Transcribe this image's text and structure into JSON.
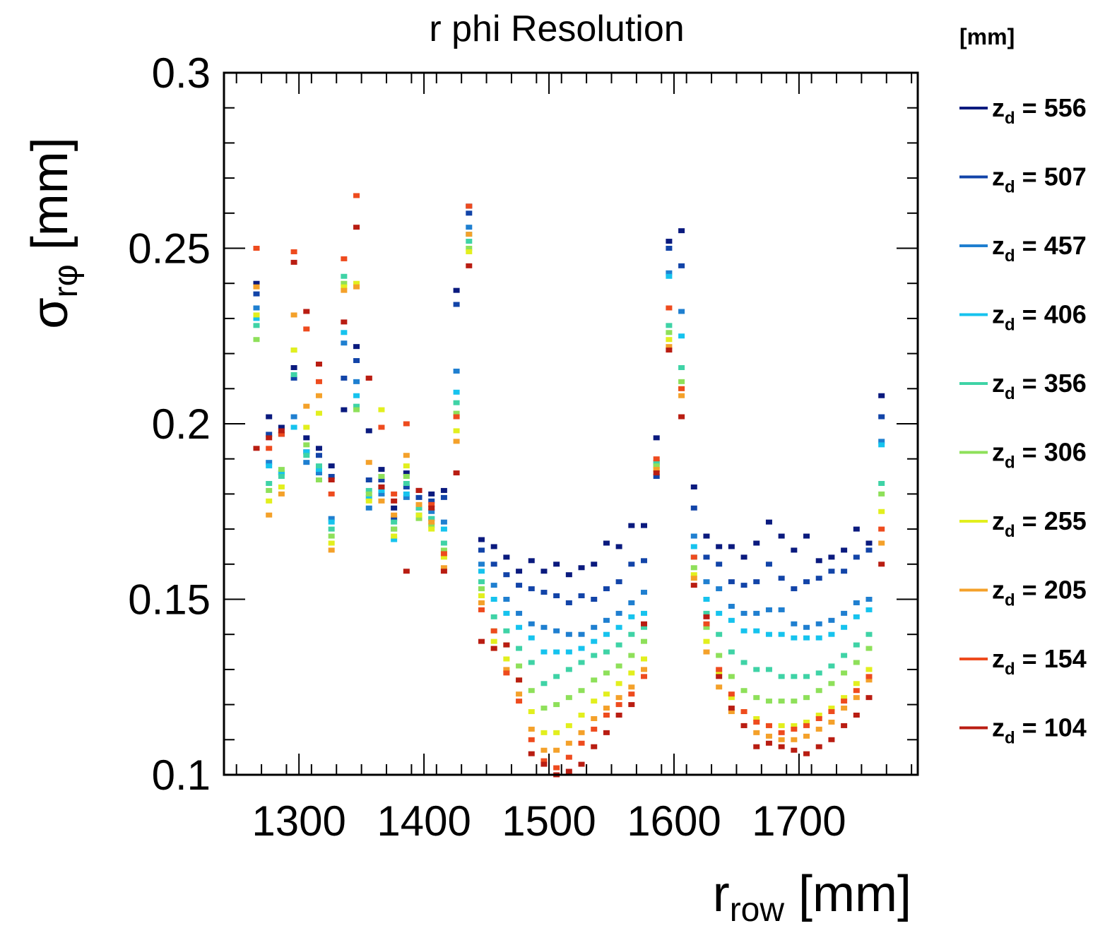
{
  "chart_data": {
    "type": "scatter",
    "title": "r phi Resolution",
    "xlabel": {
      "main": "r",
      "sub": "row",
      "unit": " [mm]"
    },
    "ylabel": {
      "main": "σ",
      "sub": "rφ",
      "unit": " [mm]"
    },
    "xlim": [
      1240,
      1795
    ],
    "ylim": [
      0.1,
      0.3
    ],
    "xticks": [
      1300,
      1400,
      1500,
      1600,
      1700
    ],
    "xtick_labels": [
      "1300",
      "1400",
      "1500",
      "1600",
      "1700"
    ],
    "yticks": [
      0.1,
      0.15,
      0.2,
      0.25,
      0.3
    ],
    "ytick_labels": [
      "0.1",
      "0.15",
      "0.2",
      "0.25",
      "0.3"
    ],
    "grid": false,
    "legend_title": "[mm]",
    "legend_position": "right",
    "series": [
      {
        "name": "z_d = 556",
        "label_main": "z",
        "label_sub": "d",
        "label_rest": " = 556",
        "color": "#0a1a7e",
        "x": [
          1266,
          1276,
          1286,
          1296,
          1306,
          1316,
          1326,
          1336,
          1346,
          1356,
          1366,
          1376,
          1386,
          1396,
          1406,
          1416,
          1426,
          1436,
          1446,
          1456,
          1466,
          1476,
          1486,
          1496,
          1506,
          1516,
          1526,
          1536,
          1546,
          1556,
          1566,
          1576,
          1586,
          1596,
          1606,
          1616,
          1626,
          1636,
          1646,
          1656,
          1666,
          1676,
          1686,
          1696,
          1706,
          1716,
          1726,
          1736,
          1746,
          1756,
          1766
        ],
        "y": [
          0.24,
          0.202,
          0.199,
          0.216,
          0.196,
          0.193,
          0.188,
          0.204,
          0.222,
          0.198,
          0.187,
          0.176,
          0.186,
          0.181,
          0.18,
          0.181,
          0.238,
          0.262,
          0.167,
          0.165,
          0.162,
          0.158,
          0.161,
          0.158,
          0.16,
          0.157,
          0.159,
          0.16,
          0.166,
          0.165,
          0.171,
          0.171,
          0.196,
          0.252,
          0.255,
          0.182,
          0.168,
          0.165,
          0.165,
          0.162,
          0.166,
          0.172,
          0.168,
          0.164,
          0.168,
          0.161,
          0.162,
          0.164,
          0.17,
          0.166,
          0.208
        ]
      },
      {
        "name": "z_d = 507",
        "label_main": "z",
        "label_sub": "d",
        "label_rest": " = 507",
        "color": "#1244a8",
        "x": [
          1266,
          1276,
          1286,
          1296,
          1306,
          1316,
          1326,
          1336,
          1346,
          1356,
          1366,
          1376,
          1386,
          1396,
          1406,
          1416,
          1426,
          1436,
          1446,
          1456,
          1466,
          1476,
          1486,
          1496,
          1506,
          1516,
          1526,
          1536,
          1546,
          1556,
          1566,
          1576,
          1586,
          1596,
          1606,
          1616,
          1626,
          1636,
          1646,
          1656,
          1666,
          1676,
          1686,
          1696,
          1706,
          1716,
          1726,
          1736,
          1746,
          1756,
          1766
        ],
        "y": [
          0.237,
          0.197,
          0.197,
          0.213,
          0.192,
          0.191,
          0.185,
          0.213,
          0.218,
          0.184,
          0.184,
          0.173,
          0.182,
          0.179,
          0.178,
          0.179,
          0.234,
          0.26,
          0.164,
          0.16,
          0.157,
          0.154,
          0.153,
          0.152,
          0.151,
          0.149,
          0.151,
          0.15,
          0.153,
          0.155,
          0.16,
          0.161,
          0.185,
          0.25,
          0.245,
          0.176,
          0.162,
          0.16,
          0.155,
          0.154,
          0.155,
          0.16,
          0.156,
          0.153,
          0.155,
          0.156,
          0.158,
          0.158,
          0.162,
          0.164,
          0.202
        ]
      },
      {
        "name": "z_d = 457",
        "label_main": "z",
        "label_sub": "d",
        "label_rest": " = 457",
        "color": "#1f7fd0",
        "x": [
          1266,
          1276,
          1286,
          1296,
          1306,
          1316,
          1326,
          1336,
          1346,
          1356,
          1366,
          1376,
          1386,
          1396,
          1406,
          1416,
          1426,
          1436,
          1446,
          1456,
          1466,
          1476,
          1486,
          1496,
          1506,
          1516,
          1526,
          1536,
          1546,
          1556,
          1566,
          1576,
          1586,
          1596,
          1606,
          1616,
          1626,
          1636,
          1646,
          1656,
          1666,
          1676,
          1686,
          1696,
          1706,
          1716,
          1726,
          1736,
          1746,
          1756,
          1766
        ],
        "y": [
          0.233,
          0.189,
          0.186,
          0.202,
          0.189,
          0.186,
          0.173,
          0.223,
          0.212,
          0.176,
          0.18,
          0.17,
          0.179,
          0.176,
          0.175,
          0.172,
          0.215,
          0.256,
          0.16,
          0.154,
          0.15,
          0.146,
          0.143,
          0.142,
          0.141,
          0.14,
          0.14,
          0.142,
          0.144,
          0.146,
          0.149,
          0.152,
          0.189,
          0.243,
          0.232,
          0.168,
          0.155,
          0.153,
          0.148,
          0.146,
          0.146,
          0.147,
          0.147,
          0.143,
          0.142,
          0.143,
          0.144,
          0.146,
          0.149,
          0.15,
          0.195
        ]
      },
      {
        "name": "z_d = 406",
        "label_main": "z",
        "label_sub": "d",
        "label_rest": " = 406",
        "color": "#16c3ee",
        "x": [
          1266,
          1276,
          1286,
          1296,
          1306,
          1316,
          1326,
          1336,
          1346,
          1356,
          1366,
          1376,
          1386,
          1396,
          1406,
          1416,
          1426,
          1436,
          1446,
          1456,
          1466,
          1476,
          1486,
          1496,
          1506,
          1516,
          1526,
          1536,
          1546,
          1556,
          1566,
          1576,
          1586,
          1596,
          1606,
          1616,
          1626,
          1636,
          1646,
          1656,
          1666,
          1676,
          1686,
          1696,
          1706,
          1716,
          1726,
          1736,
          1746,
          1756,
          1766
        ],
        "y": [
          0.23,
          0.188,
          0.186,
          0.199,
          0.192,
          0.187,
          0.172,
          0.226,
          0.208,
          0.179,
          0.181,
          0.167,
          0.18,
          0.174,
          0.173,
          0.17,
          0.209,
          0.254,
          0.158,
          0.15,
          0.146,
          0.142,
          0.139,
          0.135,
          0.135,
          0.135,
          0.136,
          0.138,
          0.14,
          0.142,
          0.145,
          0.146,
          0.188,
          0.242,
          0.225,
          0.165,
          0.15,
          0.146,
          0.144,
          0.141,
          0.141,
          0.14,
          0.14,
          0.139,
          0.139,
          0.139,
          0.14,
          0.142,
          0.145,
          0.147,
          0.194
        ]
      },
      {
        "name": "z_d = 356",
        "label_main": "z",
        "label_sub": "d",
        "label_rest": " = 356",
        "color": "#3fd3a6",
        "x": [
          1266,
          1276,
          1286,
          1296,
          1306,
          1316,
          1326,
          1336,
          1346,
          1356,
          1366,
          1376,
          1386,
          1396,
          1406,
          1416,
          1426,
          1436,
          1446,
          1456,
          1466,
          1476,
          1486,
          1496,
          1506,
          1516,
          1526,
          1536,
          1546,
          1556,
          1566,
          1576,
          1586,
          1596,
          1606,
          1616,
          1626,
          1636,
          1646,
          1656,
          1666,
          1676,
          1686,
          1696,
          1706,
          1716,
          1726,
          1736,
          1746,
          1756,
          1766
        ],
        "y": [
          0.228,
          0.183,
          0.185,
          0.214,
          0.191,
          0.188,
          0.17,
          0.242,
          0.205,
          0.181,
          0.182,
          0.172,
          0.183,
          0.176,
          0.173,
          0.166,
          0.206,
          0.252,
          0.155,
          0.145,
          0.141,
          0.136,
          0.132,
          0.126,
          0.128,
          0.13,
          0.132,
          0.134,
          0.135,
          0.137,
          0.14,
          0.142,
          0.189,
          0.228,
          0.216,
          0.162,
          0.146,
          0.14,
          0.135,
          0.132,
          0.13,
          0.13,
          0.128,
          0.128,
          0.128,
          0.129,
          0.131,
          0.134,
          0.137,
          0.14,
          0.183
        ]
      },
      {
        "name": "z_d = 306",
        "label_main": "z",
        "label_sub": "d",
        "label_rest": " = 306",
        "color": "#8ee05a",
        "x": [
          1266,
          1276,
          1286,
          1296,
          1306,
          1316,
          1326,
          1336,
          1346,
          1356,
          1366,
          1376,
          1386,
          1396,
          1406,
          1416,
          1426,
          1436,
          1446,
          1456,
          1466,
          1476,
          1486,
          1496,
          1506,
          1516,
          1526,
          1536,
          1546,
          1556,
          1566,
          1576,
          1586,
          1596,
          1606,
          1616,
          1626,
          1636,
          1646,
          1656,
          1666,
          1676,
          1686,
          1696,
          1706,
          1716,
          1726,
          1736,
          1746,
          1756,
          1766
        ],
        "y": [
          0.224,
          0.181,
          0.187,
          0.221,
          0.194,
          0.184,
          0.168,
          0.24,
          0.204,
          0.18,
          0.185,
          0.17,
          0.185,
          0.173,
          0.171,
          0.164,
          0.203,
          0.25,
          0.153,
          0.141,
          0.137,
          0.131,
          0.124,
          0.119,
          0.12,
          0.122,
          0.124,
          0.127,
          0.129,
          0.131,
          0.134,
          0.138,
          0.188,
          0.226,
          0.212,
          0.159,
          0.142,
          0.134,
          0.128,
          0.124,
          0.122,
          0.121,
          0.121,
          0.121,
          0.122,
          0.124,
          0.126,
          0.129,
          0.132,
          0.136,
          0.18
        ]
      },
      {
        "name": "z_d = 255",
        "label_main": "z",
        "label_sub": "d",
        "label_rest": " = 255",
        "color": "#e2ef1e",
        "x": [
          1266,
          1276,
          1286,
          1296,
          1306,
          1316,
          1326,
          1336,
          1346,
          1356,
          1366,
          1376,
          1386,
          1396,
          1406,
          1416,
          1426,
          1436,
          1446,
          1456,
          1466,
          1476,
          1486,
          1496,
          1506,
          1516,
          1526,
          1536,
          1546,
          1556,
          1566,
          1576,
          1586,
          1596,
          1606,
          1616,
          1626,
          1636,
          1646,
          1656,
          1666,
          1676,
          1686,
          1696,
          1706,
          1716,
          1726,
          1736,
          1746,
          1756,
          1766
        ],
        "y": [
          0.231,
          0.178,
          0.182,
          0.221,
          0.199,
          0.203,
          0.166,
          0.239,
          0.24,
          0.178,
          0.204,
          0.168,
          0.188,
          0.174,
          0.17,
          0.162,
          0.198,
          0.249,
          0.151,
          0.138,
          0.133,
          0.127,
          0.118,
          0.112,
          0.112,
          0.114,
          0.117,
          0.121,
          0.123,
          0.126,
          0.129,
          0.133,
          0.187,
          0.224,
          0.21,
          0.157,
          0.138,
          0.129,
          0.122,
          0.118,
          0.116,
          0.114,
          0.114,
          0.114,
          0.115,
          0.117,
          0.119,
          0.122,
          0.126,
          0.13,
          0.175
        ]
      },
      {
        "name": "z_d = 205",
        "label_main": "z",
        "label_sub": "d",
        "label_rest": " = 205",
        "color": "#f4a12a",
        "x": [
          1266,
          1276,
          1286,
          1296,
          1306,
          1316,
          1326,
          1336,
          1346,
          1356,
          1366,
          1376,
          1386,
          1396,
          1406,
          1416,
          1426,
          1436,
          1446,
          1456,
          1466,
          1476,
          1486,
          1496,
          1506,
          1516,
          1526,
          1536,
          1546,
          1556,
          1566,
          1576,
          1586,
          1596,
          1606,
          1616,
          1626,
          1636,
          1646,
          1656,
          1666,
          1676,
          1686,
          1696,
          1706,
          1716,
          1726,
          1736,
          1746,
          1756,
          1766
        ],
        "y": [
          0.239,
          0.174,
          0.18,
          0.231,
          0.205,
          0.208,
          0.164,
          0.238,
          0.239,
          0.189,
          0.178,
          0.174,
          0.191,
          0.177,
          0.172,
          0.159,
          0.195,
          0.254,
          0.149,
          0.136,
          0.13,
          0.123,
          0.113,
          0.107,
          0.107,
          0.109,
          0.112,
          0.116,
          0.119,
          0.122,
          0.125,
          0.13,
          0.187,
          0.222,
          0.208,
          0.156,
          0.135,
          0.125,
          0.118,
          0.114,
          0.112,
          0.111,
          0.11,
          0.11,
          0.111,
          0.113,
          0.115,
          0.119,
          0.122,
          0.127,
          0.166
        ]
      },
      {
        "name": "z_d = 154",
        "label_main": "z",
        "label_sub": "d",
        "label_rest": " = 154",
        "color": "#ee4b1e",
        "x": [
          1266,
          1276,
          1286,
          1296,
          1306,
          1316,
          1326,
          1336,
          1346,
          1356,
          1366,
          1376,
          1386,
          1396,
          1406,
          1416,
          1426,
          1436,
          1446,
          1456,
          1466,
          1476,
          1486,
          1496,
          1506,
          1516,
          1526,
          1536,
          1546,
          1556,
          1566,
          1576,
          1586,
          1596,
          1606,
          1616,
          1626,
          1636,
          1646,
          1656,
          1666,
          1676,
          1686,
          1696,
          1706,
          1716,
          1726,
          1736,
          1746,
          1756,
          1766
        ],
        "y": [
          0.25,
          0.193,
          0.197,
          0.249,
          0.227,
          0.212,
          0.18,
          0.247,
          0.265,
          0.213,
          0.199,
          0.18,
          0.2,
          0.181,
          0.177,
          0.163,
          0.202,
          0.262,
          0.147,
          0.141,
          0.129,
          0.121,
          0.11,
          0.104,
          0.102,
          0.105,
          0.109,
          0.113,
          0.117,
          0.12,
          0.123,
          0.128,
          0.19,
          0.233,
          0.21,
          0.162,
          0.143,
          0.13,
          0.123,
          0.118,
          0.115,
          0.114,
          0.112,
          0.113,
          0.114,
          0.116,
          0.118,
          0.121,
          0.124,
          0.128,
          0.17
        ]
      },
      {
        "name": "z_d = 104",
        "label_main": "z",
        "label_sub": "d",
        "label_rest": " = 104",
        "color": "#b91d12",
        "x": [
          1266,
          1276,
          1286,
          1296,
          1306,
          1316,
          1326,
          1336,
          1346,
          1356,
          1366,
          1376,
          1386,
          1396,
          1406,
          1416,
          1426,
          1436,
          1446,
          1456,
          1466,
          1476,
          1486,
          1496,
          1506,
          1516,
          1526,
          1536,
          1546,
          1556,
          1566,
          1576,
          1586,
          1596,
          1606,
          1616,
          1626,
          1636,
          1646,
          1656,
          1666,
          1676,
          1686,
          1696,
          1706,
          1716,
          1726,
          1736,
          1746,
          1756,
          1766
        ],
        "y": [
          0.193,
          0.196,
          0.198,
          0.246,
          0.232,
          0.217,
          0.184,
          0.229,
          0.256,
          0.213,
          0.182,
          0.178,
          0.158,
          0.181,
          0.176,
          0.158,
          0.186,
          0.245,
          0.138,
          0.136,
          0.137,
          0.127,
          0.106,
          0.103,
          0.1,
          0.101,
          0.103,
          0.108,
          0.112,
          0.117,
          0.12,
          0.143,
          0.186,
          0.221,
          0.202,
          0.154,
          0.145,
          0.128,
          0.119,
          0.114,
          0.108,
          0.109,
          0.108,
          0.107,
          0.106,
          0.108,
          0.11,
          0.114,
          0.117,
          0.122,
          0.16
        ]
      }
    ]
  }
}
